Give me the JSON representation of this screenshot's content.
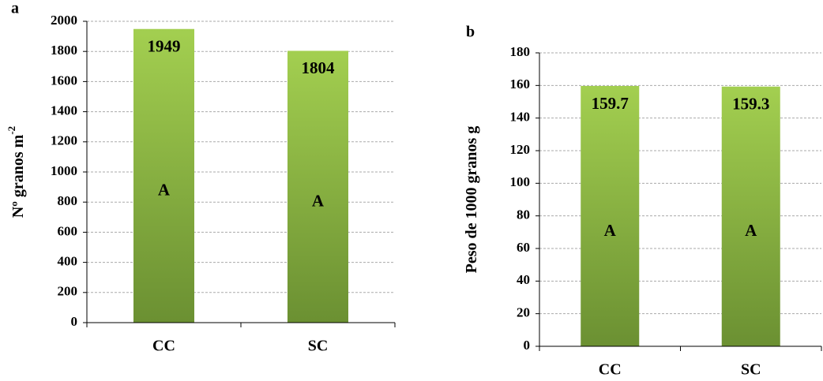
{
  "chart_data": [
    {
      "type": "bar",
      "panel_label": "a",
      "ylabel": "Nº granos m",
      "ylabel_superscript": "-2",
      "categories": [
        "CC",
        "SC"
      ],
      "values": [
        1949,
        1804
      ],
      "letters": [
        "A",
        "A"
      ],
      "color": "#8cb843",
      "ylim": [
        0,
        2000
      ],
      "yticks": [
        0,
        200,
        400,
        600,
        800,
        1000,
        1200,
        1400,
        1600,
        1800,
        2000
      ],
      "grid": true
    },
    {
      "type": "bar",
      "panel_label": "b",
      "ylabel": "Peso de 1000 granos  g",
      "categories": [
        "CC",
        "SC"
      ],
      "values": [
        159.7,
        159.3
      ],
      "letters": [
        "A",
        "A"
      ],
      "color": "#8cb843",
      "ylim": [
        0,
        180
      ],
      "yticks": [
        0,
        20,
        40,
        60,
        80,
        100,
        120,
        140,
        160,
        180
      ],
      "grid": true
    }
  ]
}
